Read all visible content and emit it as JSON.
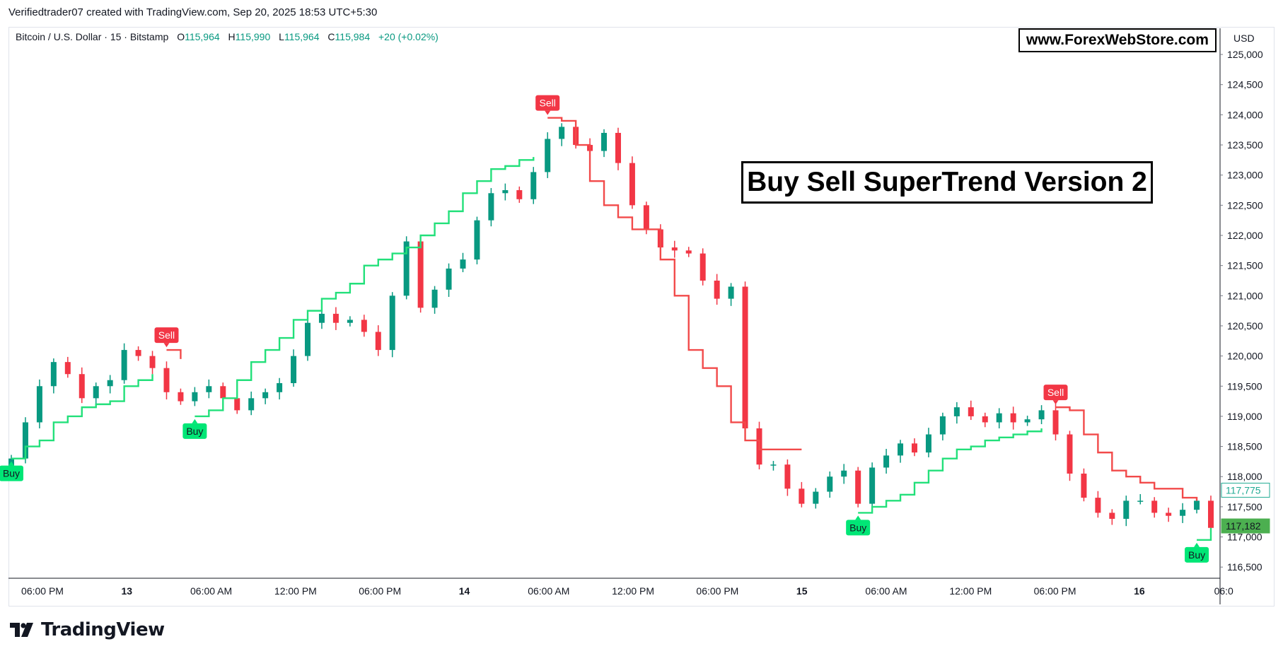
{
  "credit": "Verifiedtrader07 created with TradingView.com, Sep 20, 2025 18:53 UTC+5:30",
  "legend": {
    "symbol": "Bitcoin / U.S. Dollar · 15 · Bitstamp",
    "o_label": "O",
    "o": "115,964",
    "h_label": "H",
    "h": "115,990",
    "l_label": "L",
    "l": "115,964",
    "c_label": "C",
    "c": "115,984",
    "change": "+20 (+0.02%)"
  },
  "website": "www.ForexWebStore.com",
  "headline": "Buy Sell SuperTrend Version 2",
  "currency": "USD",
  "brand": "TradingView",
  "colors": {
    "up": "#089981",
    "down": "#f23645",
    "supertrend_up": "#22e07a",
    "supertrend_down": "#f24a4a",
    "buy_label": "#00e676",
    "sell_label": "#f23645"
  },
  "chart_data": {
    "type": "candlestick",
    "title": "Bitcoin / U.S. Dollar · 15 · Bitstamp",
    "xlabel": "",
    "ylabel": "USD",
    "ylim": [
      116350,
      125200
    ],
    "y_ticks": [
      125000,
      124500,
      124000,
      123500,
      123000,
      122500,
      122000,
      121500,
      121000,
      120500,
      120000,
      119500,
      119000,
      118500,
      118000,
      117500,
      117000,
      116500
    ],
    "y_tick_labels": [
      "125,000",
      "124,500",
      "124,000",
      "123,500",
      "123,000",
      "122,500",
      "122,000",
      "121,500",
      "121,000",
      "120,500",
      "120,000",
      "119,500",
      "119,000",
      "118,500",
      "118,000",
      "117,500",
      "117,000",
      "116,500"
    ],
    "x_tick_labels": [
      "06:00 PM",
      "13",
      "06:00 AM",
      "12:00 PM",
      "06:00 PM",
      "14",
      "06:00 AM",
      "12:00 PM",
      "06:00 PM",
      "15",
      "06:00 AM",
      "12:00 PM",
      "06:00 PM",
      "16",
      "06:0"
    ],
    "price_tags": [
      {
        "value": 117775,
        "label": "117,775",
        "style": "outline"
      },
      {
        "value": 117182,
        "label": "117,182",
        "style": "filled"
      }
    ],
    "series": [
      {
        "name": "Close",
        "values": [
          118300,
          118900,
          119500,
          119900,
          119700,
          119300,
          119500,
          119600,
          120100,
          120000,
          119800,
          119400,
          119250,
          119400,
          119500,
          119300,
          119100,
          119300,
          119400,
          119550,
          120000,
          120550,
          120700,
          120550,
          120600,
          120400,
          120100,
          121000,
          121900,
          120800,
          121100,
          121450,
          121600,
          122250,
          122700,
          122750,
          122600,
          123050,
          123600,
          123800,
          123500,
          123400,
          123700,
          123200,
          122500,
          122100,
          121800,
          121750,
          121700,
          121250,
          120950,
          121150,
          118800,
          118200,
          118200,
          117800,
          117550,
          117750,
          118000,
          118100,
          117550,
          118150,
          118350,
          118550,
          118400,
          118700,
          119000,
          119150,
          119000,
          118900,
          119050,
          118900,
          118950,
          119100,
          118700,
          118050,
          117650,
          117400,
          117300,
          117600,
          117600,
          117400,
          117350,
          117450,
          117600,
          117150
        ]
      },
      {
        "name": "SuperTrend Up",
        "values": [
          118300,
          118500,
          118600,
          118900,
          119000,
          119150,
          119200,
          119250,
          119500,
          119600,
          119700,
          null,
          null,
          119000,
          119100,
          119300,
          119600,
          119900,
          120100,
          120300,
          120600,
          120750,
          120950,
          121050,
          121200,
          121500,
          121600,
          121700,
          121800,
          122000,
          122200,
          122400,
          122700,
          122900,
          123100,
          123150,
          123250,
          123300,
          null,
          null,
          null,
          null,
          null,
          null,
          null,
          null,
          null,
          null,
          null,
          null,
          null,
          null,
          null,
          null,
          null,
          null,
          null,
          null,
          null,
          null,
          117400,
          117500,
          117600,
          117700,
          117900,
          118100,
          118300,
          118450,
          118500,
          118600,
          118650,
          118700,
          118750,
          118800,
          null,
          null,
          null,
          null,
          null,
          null,
          null,
          null,
          null,
          null,
          116950,
          117150
        ]
      },
      {
        "name": "SuperTrend Down",
        "values": [
          null,
          null,
          null,
          null,
          null,
          null,
          null,
          null,
          null,
          null,
          null,
          120100,
          119950,
          null,
          null,
          null,
          null,
          null,
          null,
          null,
          null,
          null,
          null,
          null,
          null,
          null,
          null,
          null,
          null,
          null,
          null,
          null,
          null,
          null,
          null,
          null,
          null,
          null,
          123950,
          123900,
          123500,
          122900,
          122500,
          122300,
          122100,
          122100,
          121600,
          121000,
          120100,
          119800,
          119500,
          118900,
          118600,
          118450,
          118450,
          118450,
          118450,
          null,
          null,
          null,
          null,
          null,
          null,
          null,
          null,
          null,
          null,
          null,
          null,
          null,
          null,
          null,
          null,
          null,
          119150,
          119100,
          118700,
          118400,
          118100,
          118000,
          117900,
          117800,
          117800,
          117650,
          117600,
          null
        ]
      }
    ],
    "signals": [
      {
        "index": 0,
        "type": "buy",
        "label": "Buy"
      },
      {
        "index": 11,
        "type": "sell",
        "label": "Sell"
      },
      {
        "index": 13,
        "type": "buy",
        "label": "Buy"
      },
      {
        "index": 38,
        "type": "sell",
        "label": "Sell"
      },
      {
        "index": 60,
        "type": "buy",
        "label": "Buy"
      },
      {
        "index": 74,
        "type": "sell",
        "label": "Sell"
      },
      {
        "index": 84,
        "type": "buy",
        "label": "Buy"
      }
    ]
  }
}
